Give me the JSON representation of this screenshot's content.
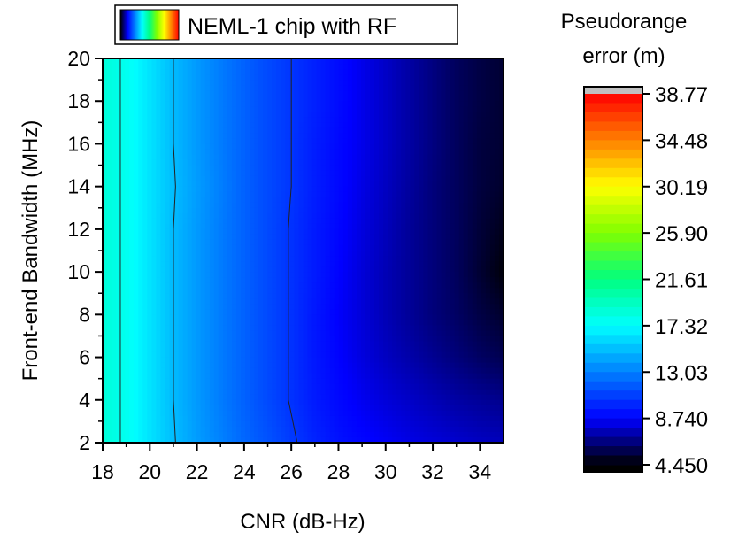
{
  "chart_data": {
    "type": "heatmap",
    "title": "",
    "xlabel": "CNR (dB-Hz)",
    "ylabel": "Front-end Bandwidth (MHz)",
    "xlim": [
      18,
      35
    ],
    "ylim": [
      2,
      20
    ],
    "x_ticks": [
      "18",
      "20",
      "22",
      "24",
      "26",
      "28",
      "30",
      "32",
      "34"
    ],
    "y_ticks": [
      "2",
      "4",
      "6",
      "8",
      "10",
      "12",
      "14",
      "16",
      "18",
      "20"
    ],
    "legend": {
      "label": "NEML-1 chip with RF",
      "placement": "top"
    },
    "colorbar": {
      "title_line1": "Pseudorange",
      "title_line2": "error (m)",
      "min": 4.45,
      "max": 38.77,
      "labels": [
        "38.77",
        "34.48",
        "30.19",
        "25.90",
        "21.61",
        "17.32",
        "13.03",
        "8.740",
        "4.450"
      ],
      "colors": [
        "#000000",
        "#0000ff",
        "#0080ff",
        "#00ffff",
        "#00ff80",
        "#80ff00",
        "#ffff00",
        "#ff8000",
        "#ff0000"
      ]
    },
    "bandwidths": [
      2,
      4,
      6,
      8,
      10,
      12,
      14,
      16,
      18,
      20
    ],
    "cnr_values": [
      18,
      19,
      20,
      21,
      22,
      23,
      24,
      25,
      26,
      27,
      28,
      29,
      30,
      31,
      32,
      33,
      34,
      35
    ],
    "error_m": [
      [
        18.6,
        17.8,
        16.4,
        15.1,
        14.0,
        13.1,
        12.2,
        11.5,
        10.7,
        9.9,
        9.3,
        8.9,
        8.6,
        8.3,
        8.1,
        7.9,
        7.7,
        7.6
      ],
      [
        18.6,
        17.8,
        16.4,
        15.0,
        13.9,
        12.9,
        12.0,
        11.2,
        10.4,
        9.6,
        9.0,
        8.5,
        8.1,
        7.8,
        7.5,
        7.2,
        7.0,
        6.8
      ],
      [
        18.6,
        17.8,
        16.4,
        15.0,
        13.9,
        12.9,
        12.0,
        11.2,
        10.4,
        9.5,
        8.8,
        8.2,
        7.7,
        7.3,
        6.9,
        6.5,
        6.1,
        5.8
      ],
      [
        18.6,
        17.8,
        16.4,
        15.0,
        13.9,
        12.9,
        12.0,
        11.2,
        10.4,
        9.5,
        8.7,
        8.1,
        7.5,
        7.0,
        6.5,
        6.1,
        5.6,
        5.2
      ],
      [
        18.6,
        17.8,
        16.4,
        15.0,
        13.9,
        12.9,
        12.0,
        11.2,
        10.4,
        9.6,
        8.8,
        8.1,
        7.5,
        7.0,
        6.5,
        6.0,
        5.3,
        4.6
      ],
      [
        18.6,
        17.8,
        16.4,
        15.0,
        13.9,
        12.9,
        12.0,
        11.2,
        10.4,
        9.6,
        8.9,
        8.2,
        7.6,
        7.0,
        6.5,
        6.0,
        5.4,
        4.9
      ],
      [
        18.6,
        17.8,
        16.4,
        15.1,
        14.0,
        13.0,
        12.0,
        11.2,
        10.5,
        9.7,
        9.0,
        8.3,
        7.7,
        7.1,
        6.5,
        6.0,
        5.5,
        5.2
      ],
      [
        18.6,
        17.8,
        16.4,
        15.0,
        13.9,
        12.9,
        12.0,
        11.2,
        10.5,
        9.7,
        9.0,
        8.4,
        7.8,
        7.2,
        6.6,
        6.0,
        5.5,
        5.3
      ],
      [
        18.6,
        17.8,
        16.4,
        15.0,
        13.9,
        12.9,
        12.0,
        11.2,
        10.5,
        9.8,
        9.1,
        8.4,
        7.8,
        7.2,
        6.6,
        6.0,
        5.6,
        5.3
      ],
      [
        18.6,
        17.8,
        16.4,
        15.0,
        13.9,
        12.9,
        12.0,
        11.2,
        10.5,
        9.8,
        9.1,
        8.4,
        7.8,
        7.2,
        6.6,
        6.0,
        5.6,
        5.3
      ]
    ],
    "contour_levels": [
      10.5,
      15.0,
      18.0
    ]
  }
}
